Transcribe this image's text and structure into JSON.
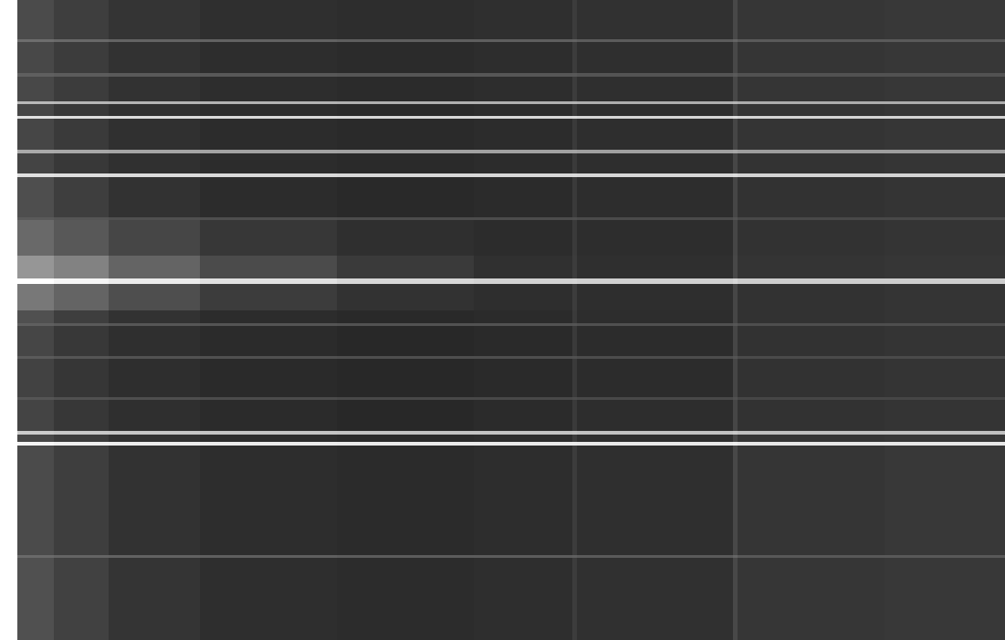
{
  "chart_data": {
    "type": "heatmap",
    "tick_labels": false,
    "grid": false,
    "color": "gray",
    "xlim": [
      0,
      1082
    ],
    "ylim": [
      0,
      701
    ],
    "zlim": [
      0,
      255
    ],
    "x_edges": [
      0,
      40,
      100,
      200,
      350,
      500,
      608,
      613,
      784,
      789,
      950,
      1082
    ],
    "y_edges": [
      0,
      90,
      93,
      213,
      217,
      225,
      229,
      263,
      266,
      308,
      311,
      344,
      347,
      361,
      390,
      396,
      421,
      460,
      463,
      507,
      511,
      533,
      537,
      571,
      574,
      587,
      590,
      617,
      621,
      655,
      658,
      701
    ],
    "cells": [
      [
        80,
        65,
        52,
        46,
        44,
        46,
        60,
        48,
        72,
        54,
        56
      ],
      [
        105,
        100,
        98,
        95,
        92,
        92,
        95,
        90,
        100,
        88,
        88
      ],
      [
        75,
        62,
        50,
        45,
        43,
        45,
        60,
        47,
        72,
        53,
        56
      ],
      [
        245,
        240,
        238,
        236,
        235,
        235,
        236,
        234,
        238,
        232,
        232
      ],
      [
        72,
        60,
        50,
        45,
        43,
        45,
        60,
        47,
        72,
        53,
        55
      ],
      [
        205,
        200,
        198,
        196,
        195,
        195,
        198,
        194,
        200,
        192,
        192
      ],
      [
        68,
        55,
        47,
        43,
        40,
        43,
        58,
        45,
        70,
        50,
        52
      ],
      [
        85,
        80,
        78,
        75,
        72,
        72,
        76,
        72,
        80,
        70,
        70
      ],
      [
        66,
        54,
        46,
        42,
        40,
        42,
        58,
        44,
        70,
        50,
        52
      ],
      [
        90,
        85,
        82,
        80,
        78,
        78,
        80,
        76,
        84,
        74,
        74
      ],
      [
        70,
        56,
        47,
        43,
        40,
        42,
        58,
        44,
        70,
        50,
        52
      ],
      [
        95,
        90,
        86,
        84,
        82,
        82,
        84,
        80,
        86,
        78,
        78
      ],
      [
        80,
        62,
        50,
        44,
        41,
        43,
        58,
        45,
        70,
        50,
        52
      ],
      [
        120,
        100,
        78,
        60,
        50,
        46,
        60,
        46,
        70,
        50,
        52
      ],
      [
        255,
        245,
        235,
        225,
        215,
        210,
        212,
        208,
        215,
        205,
        205
      ],
      [
        150,
        130,
        100,
        75,
        58,
        48,
        60,
        47,
        72,
        52,
        54
      ],
      [
        105,
        88,
        70,
        55,
        47,
        44,
        58,
        45,
        70,
        50,
        52
      ],
      [
        90,
        85,
        80,
        78,
        76,
        76,
        78,
        74,
        82,
        72,
        72
      ],
      [
        78,
        62,
        50,
        44,
        41,
        43,
        58,
        45,
        70,
        50,
        52
      ],
      [
        225,
        222,
        220,
        218,
        216,
        216,
        218,
        215,
        220,
        212,
        212
      ],
      [
        68,
        56,
        48,
        44,
        42,
        44,
        58,
        46,
        70,
        51,
        53
      ],
      [
        170,
        168,
        165,
        163,
        162,
        162,
        164,
        160,
        166,
        158,
        158
      ],
      [
        70,
        58,
        48,
        44,
        42,
        44,
        58,
        46,
        70,
        52,
        54
      ],
      [
        225,
        222,
        220,
        218,
        216,
        216,
        218,
        214,
        220,
        212,
        212
      ],
      [
        70,
        56,
        48,
        44,
        42,
        44,
        58,
        46,
        70,
        52,
        54
      ],
      [
        185,
        182,
        180,
        178,
        176,
        176,
        178,
        174,
        180,
        172,
        172
      ],
      [
        72,
        60,
        50,
        45,
        43,
        45,
        60,
        47,
        72,
        53,
        55
      ],
      [
        95,
        92,
        90,
        88,
        86,
        86,
        88,
        84,
        90,
        82,
        82
      ],
      [
        72,
        60,
        50,
        45,
        43,
        45,
        60,
        47,
        72,
        53,
        55
      ],
      [
        110,
        105,
        100,
        98,
        95,
        95,
        98,
        92,
        100,
        90,
        90
      ],
      [
        75,
        62,
        52,
        47,
        45,
        47,
        60,
        49,
        72,
        54,
        56
      ]
    ]
  }
}
